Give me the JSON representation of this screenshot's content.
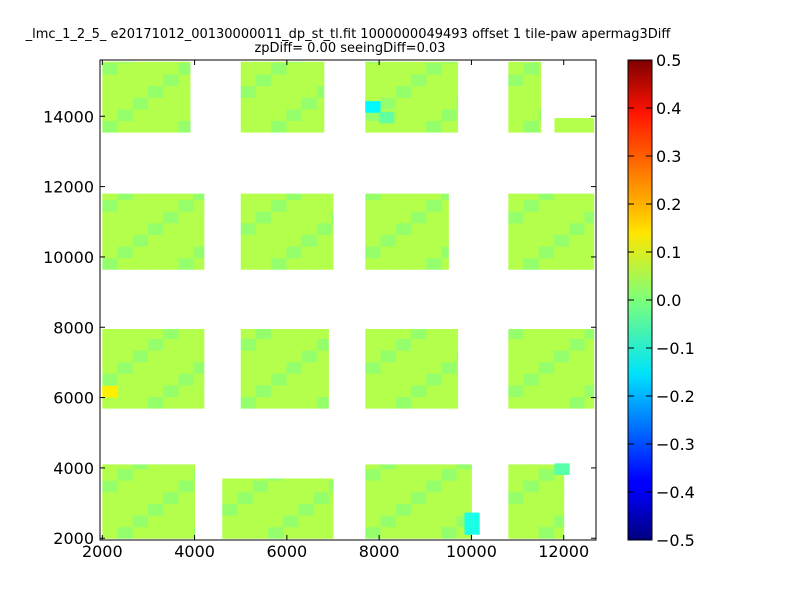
{
  "chart_data": {
    "type": "heatmap",
    "title_line1": "_lmc_1_2_5_ e20171012_00130000011_dp_st_tl.fit 1000000049493 offset 1 tile-paw apermag3Diff",
    "title_line2": "zpDiff= 0.00 seeingDiff=0.03",
    "xlabel": "",
    "ylabel": "",
    "xlim": [
      1950,
      12700
    ],
    "ylim": [
      1950,
      15600
    ],
    "x_ticks": [
      2000,
      4000,
      6000,
      8000,
      10000,
      12000
    ],
    "y_ticks": [
      2000,
      4000,
      6000,
      8000,
      10000,
      12000,
      14000
    ],
    "colorbar": {
      "colormap": "jet",
      "range": [
        -0.5,
        0.5
      ],
      "ticks": [
        "0.5",
        "0.4",
        "0.3",
        "0.2",
        "0.1",
        "0.0",
        "−0.1",
        "−0.2",
        "−0.3",
        "−0.4",
        "−0.5"
      ],
      "tick_values": [
        0.5,
        0.4,
        0.3,
        0.2,
        0.1,
        0.0,
        -0.1,
        -0.2,
        -0.3,
        -0.4,
        -0.5
      ]
    },
    "cell_size": 330,
    "cell_value_default": 0.05,
    "cell_value_alt": 0.02,
    "highlight_cells": [
      {
        "x": 2000,
        "y": 6000,
        "value": 0.14
      },
      {
        "x": 9850,
        "y": 2400,
        "value": -0.1
      },
      {
        "x": 9850,
        "y": 2100,
        "value": -0.1
      },
      {
        "x": 7700,
        "y": 14100,
        "value": -0.13
      },
      {
        "x": 8000,
        "y": 13800,
        "value": -0.03
      },
      {
        "x": 11800,
        "y": 3800,
        "value": -0.04
      }
    ],
    "regions": [
      {
        "x": [
          2000,
          3900
        ],
        "y": [
          13550,
          15550
        ]
      },
      {
        "x": [
          5000,
          6800
        ],
        "y": [
          13550,
          15550
        ]
      },
      {
        "x": [
          7700,
          9700
        ],
        "y": [
          13550,
          15550
        ]
      },
      {
        "x": [
          10800,
          11500
        ],
        "y": [
          13550,
          15550
        ]
      },
      {
        "x": [
          11800,
          12650
        ],
        "y": [
          13550,
          13950
        ]
      },
      {
        "x": [
          2000,
          4200
        ],
        "y": [
          9650,
          11800
        ]
      },
      {
        "x": [
          5000,
          7000
        ],
        "y": [
          9650,
          11800
        ]
      },
      {
        "x": [
          7700,
          9500
        ],
        "y": [
          9650,
          11800
        ]
      },
      {
        "x": [
          10800,
          12650
        ],
        "y": [
          9650,
          11800
        ]
      },
      {
        "x": [
          2000,
          4200
        ],
        "y": [
          5700,
          7950
        ]
      },
      {
        "x": [
          5000,
          6900
        ],
        "y": [
          5700,
          7950
        ]
      },
      {
        "x": [
          7700,
          9700
        ],
        "y": [
          5700,
          7950
        ]
      },
      {
        "x": [
          10800,
          12650
        ],
        "y": [
          5700,
          7950
        ]
      },
      {
        "x": [
          2000,
          4000
        ],
        "y": [
          2000,
          4100
        ]
      },
      {
        "x": [
          4600,
          7000
        ],
        "y": [
          2000,
          3700
        ]
      },
      {
        "x": [
          7700,
          10000
        ],
        "y": [
          2000,
          4100
        ]
      },
      {
        "x": [
          10800,
          12000
        ],
        "y": [
          2000,
          4100
        ]
      }
    ]
  }
}
